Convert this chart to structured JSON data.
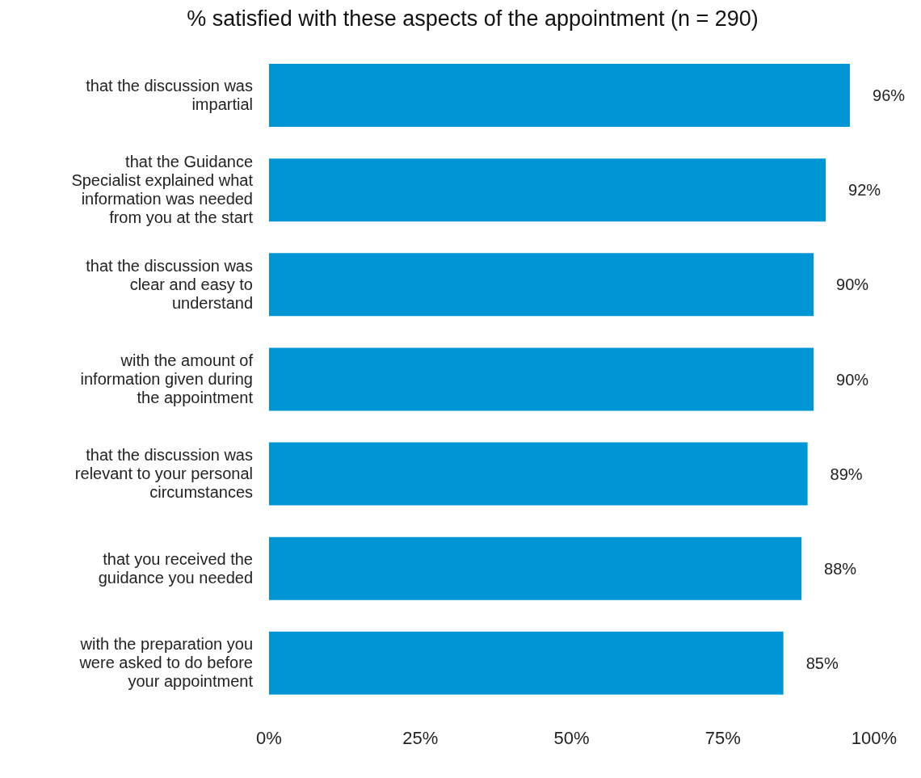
{
  "chart_data": {
    "type": "bar",
    "orientation": "horizontal",
    "title": "% satisfied with these aspects of the appointment (n = 290)",
    "categories": [
      "that the discussion was impartial",
      "that the Guidance Specialist explained what information was needed from you at the start",
      "that the discussion was clear and easy to understand",
      "with the amount of information given during the appointment",
      "that the discussion was relevant to your personal circumstances",
      "that you received the guidance you needed",
      "with the preparation you were asked to do before your appointment"
    ],
    "values": [
      96,
      92,
      90,
      90,
      89,
      88,
      85
    ],
    "value_labels": [
      "96%",
      "92%",
      "90%",
      "90%",
      "89%",
      "88%",
      "85%"
    ],
    "color": "#0096d6",
    "xlim": [
      0,
      100
    ],
    "xticks": [
      {
        "value": 0,
        "label": "0%"
      },
      {
        "value": 25,
        "label": "25%"
      },
      {
        "value": 50,
        "label": "50%"
      },
      {
        "value": 75,
        "label": "75%"
      },
      {
        "value": 100,
        "label": "100%"
      }
    ],
    "grid": false,
    "legend": false
  }
}
